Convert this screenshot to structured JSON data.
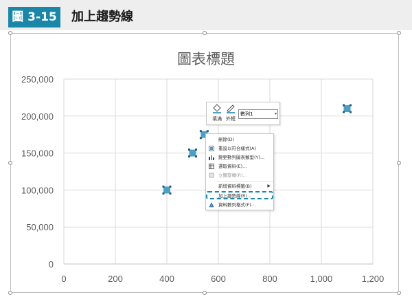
{
  "header": {
    "figure_label": "圖 3-15",
    "title": "加上趨勢線"
  },
  "chart_data": {
    "type": "scatter",
    "title": "圖表標題",
    "x": [
      400,
      500,
      545,
      1100
    ],
    "y": [
      100000,
      150000,
      175000,
      210000
    ],
    "xlim": [
      0,
      1200
    ],
    "ylim": [
      0,
      250000
    ],
    "x_ticks": [
      "0",
      "200",
      "400",
      "600",
      "800",
      "1,000",
      "1,200"
    ],
    "y_ticks": [
      "0",
      "50,000",
      "100,000",
      "150,000",
      "200,000",
      "250,000"
    ],
    "grid": true,
    "marker_color": "#4e9fc4",
    "marker_shape": "square"
  },
  "mini_toolbar": {
    "fill_label": "填滿",
    "outline_label": "外框",
    "series_value": "數列1"
  },
  "context_menu": {
    "items": [
      {
        "label": "刪除(D)",
        "icon": "delete-icon",
        "disabled": false
      },
      {
        "label": "重設以符合樣式(A)",
        "icon": "reset-style-icon",
        "disabled": false
      },
      {
        "label": "變更數列圖表類型(Y)...",
        "icon": "chart-type-icon",
        "disabled": false
      },
      {
        "label": "選取資料(E)...",
        "icon": "select-data-icon",
        "disabled": false
      },
      {
        "label": "立體旋轉(R)...",
        "icon": "rotate-3d-icon",
        "disabled": true
      },
      {
        "label": "新增資料標籤(B)",
        "icon": "",
        "disabled": false,
        "submenu": true
      },
      {
        "label": "加上趨勢線(R)...",
        "icon": "",
        "disabled": false,
        "highlighted": true
      },
      {
        "label": "資料數列格式(F)...",
        "icon": "format-series-icon",
        "disabled": false
      }
    ]
  },
  "colors": {
    "accent": "#1a86a8",
    "marker": "#4e9fc4"
  }
}
